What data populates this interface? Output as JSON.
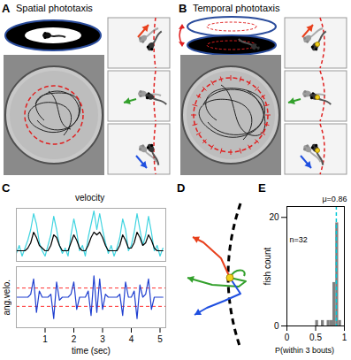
{
  "figure": {
    "panels": {
      "A": {
        "letter": "A",
        "title": "Spatial phototaxis"
      },
      "B": {
        "letter": "B",
        "title": "Temporal phototaxis"
      },
      "C": {
        "letter": "C"
      },
      "D": {
        "letter": "D"
      },
      "E": {
        "letter": "E"
      }
    }
  },
  "chart_data": [
    {
      "panel": "C",
      "type": "line",
      "ylabel": "velocity",
      "x": [
        0,
        0.1,
        0.2,
        0.3,
        0.4,
        0.5,
        0.6,
        0.7,
        0.8,
        0.9,
        1,
        1.1,
        1.2,
        1.3,
        1.4,
        1.5,
        1.6,
        1.7,
        1.8,
        1.9,
        2,
        2.1,
        2.2,
        2.3,
        2.4,
        2.5,
        2.6,
        2.7,
        2.8,
        2.9,
        3,
        3.1,
        3.2,
        3.3,
        3.4,
        3.5,
        3.6,
        3.7,
        3.8,
        3.9,
        4,
        4.1,
        4.2,
        4.3,
        4.4,
        4.5,
        4.6,
        4.7,
        4.8,
        4.9,
        5,
        5.1
      ],
      "series": [
        {
          "color": "#3fd4e0",
          "values": [
            0.15,
            0.3,
            0.1,
            0.25,
            0.4,
            0.6,
            0.9,
            0.7,
            0.35,
            0.2,
            0.1,
            0.3,
            0.5,
            0.85,
            0.6,
            0.3,
            0.15,
            0.25,
            0.1,
            0.5,
            0.8,
            0.55,
            0.2,
            0.3,
            0.1,
            0.45,
            0.7,
            0.95,
            0.6,
            0.9,
            0.6,
            0.35,
            0.15,
            0.3,
            0.1,
            0.25,
            0.45,
            0.8,
            0.6,
            0.2,
            0.3,
            0.55,
            0.9,
            0.6,
            0.3,
            0.5,
            0.85,
            0.55,
            0.2,
            0.3,
            0.1,
            0.25
          ]
        },
        {
          "color": "#000000",
          "values": [
            0.2,
            0.2,
            0.2,
            0.2,
            0.25,
            0.35,
            0.55,
            0.45,
            0.3,
            0.25,
            0.2,
            0.2,
            0.3,
            0.5,
            0.45,
            0.3,
            0.2,
            0.2,
            0.2,
            0.35,
            0.5,
            0.4,
            0.25,
            0.2,
            0.2,
            0.3,
            0.45,
            0.55,
            0.5,
            0.55,
            0.45,
            0.3,
            0.2,
            0.2,
            0.2,
            0.2,
            0.3,
            0.5,
            0.4,
            0.25,
            0.25,
            0.35,
            0.55,
            0.45,
            0.3,
            0.35,
            0.5,
            0.4,
            0.25,
            0.2,
            0.2,
            0.2
          ]
        }
      ],
      "xlim": [
        0,
        5.2
      ],
      "ylim": [
        0,
        1
      ],
      "tick_labels": false
    },
    {
      "panel": "C",
      "type": "line",
      "ylabel": "ang.velo.",
      "xlabel": "time (sec)",
      "x": [
        0,
        0.1,
        0.2,
        0.3,
        0.4,
        0.5,
        0.6,
        0.7,
        0.8,
        0.9,
        1,
        1.1,
        1.2,
        1.3,
        1.4,
        1.5,
        1.6,
        1.7,
        1.8,
        1.9,
        2,
        2.1,
        2.2,
        2.3,
        2.4,
        2.5,
        2.6,
        2.7,
        2.8,
        2.9,
        3,
        3.1,
        3.2,
        3.3,
        3.4,
        3.5,
        3.6,
        3.7,
        3.8,
        3.9,
        4,
        4.1,
        4.2,
        4.3,
        4.4,
        4.5,
        4.6,
        4.7,
        4.8,
        4.9,
        5,
        5.1
      ],
      "series": [
        {
          "color": "#1f3fd0",
          "values": [
            0,
            0,
            0,
            0,
            0,
            0.1,
            0.6,
            -0.5,
            0.2,
            0,
            0,
            0,
            0.1,
            -0.7,
            0.5,
            -0.1,
            0,
            0,
            0,
            0.1,
            0.5,
            -0.4,
            0,
            0,
            0,
            0.2,
            -0.6,
            0.7,
            -0.5,
            0.6,
            -0.4,
            0.1,
            0,
            0,
            0,
            0,
            0.1,
            -0.6,
            0.5,
            0,
            0,
            0.2,
            -0.7,
            0.4,
            0,
            0.1,
            0.6,
            -0.4,
            0,
            0,
            0,
            0
          ]
        }
      ],
      "rules": {
        "values": [
          -0.3,
          0.3
        ],
        "color": "#ff3030",
        "line_style": "dashed"
      },
      "xlim": [
        0,
        5.2
      ],
      "ylim": [
        -1,
        1
      ],
      "xticks": [
        1,
        2,
        3,
        4,
        5
      ],
      "tick_labels": "x"
    },
    {
      "panel": "E",
      "type": "histogram",
      "xlabel": "P(within 3 bouts)",
      "ylabel": "fish count",
      "bins": [
        0.5,
        0.55,
        0.6,
        0.65,
        0.7,
        0.75,
        0.8,
        0.85,
        0.9,
        0.95,
        1
      ],
      "counts": [
        1,
        0,
        1,
        0,
        1,
        1,
        8,
        19,
        1,
        0
      ],
      "color": "#808080",
      "xlim": [
        0,
        1
      ],
      "xticks": [
        0,
        0.5,
        1
      ],
      "ylim": [
        0,
        22
      ],
      "yticks": [
        0,
        20
      ],
      "annotations": [
        {
          "text": "n=32"
        }
      ],
      "mean": {
        "value": 0.86,
        "label": "μ=0.86",
        "color": "#00c8d7",
        "line_style": "dashed"
      }
    }
  ]
}
